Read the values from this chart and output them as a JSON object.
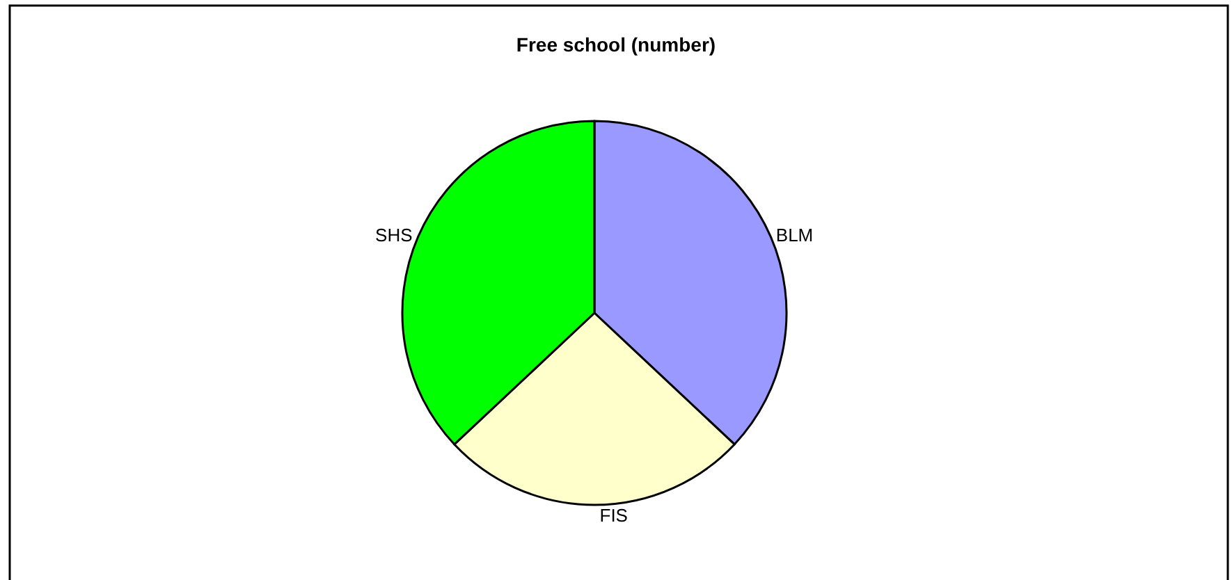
{
  "chart_data": {
    "type": "pie",
    "title": "Free school (number)",
    "categories": [
      "BLM",
      "FIS",
      "SHS"
    ],
    "values": [
      37,
      26,
      37
    ],
    "colors": [
      "#9999ff",
      "#ffffcc",
      "#00ff00"
    ]
  }
}
